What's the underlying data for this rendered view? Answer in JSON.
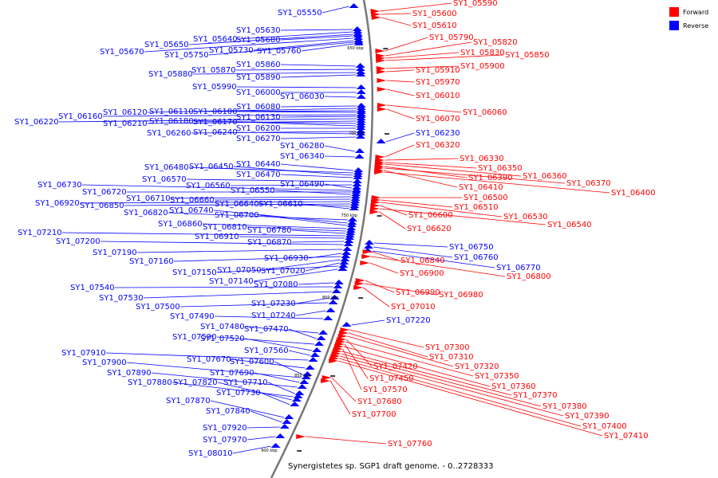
{
  "legend": {
    "forward_label": "Forward",
    "reverse_label": "Reverse",
    "forward_color": "#ff0000",
    "reverse_color": "#0000ff"
  },
  "caption": "Synergistetes sp. SGP1 draft genome. - 0..2728333",
  "backbone_ticks": [
    "650 kbp",
    "700 kbp",
    "750 kbp",
    "800 kbp",
    "850 kbp",
    "900 kbp"
  ],
  "reverse_genes": [
    "SY1_05550",
    "SY1_05630",
    "SY1_05640",
    "SY1_05650",
    "SY1_05680",
    "SY1_05670",
    "SY1_05730",
    "SY1_05750",
    "SY1_05760",
    "SY1_05860",
    "SY1_05870",
    "SY1_05880",
    "SY1_05890",
    "SY1_05990",
    "SY1_06000",
    "SY1_06030",
    "SY1_06080",
    "SY1_06120",
    "SY1_06110",
    "SY1_06100",
    "SY1_06160",
    "SY1_06130",
    "SY1_06220",
    "SY1_06210",
    "SY1_06180",
    "SY1_06170",
    "SY1_06200",
    "SY1_06260",
    "SY1_06240",
    "SY1_06270",
    "SY1_06280",
    "SY1_06340",
    "SY1_06440",
    "SY1_06480",
    "SY1_06450",
    "SY1_06470",
    "SY1_06570",
    "SY1_06560",
    "SY1_06490",
    "SY1_06730",
    "SY1_06720",
    "SY1_06550",
    "SY1_06710",
    "SY1_06660",
    "SY1_06920",
    "SY1_06850",
    "SY1_06640",
    "SY1_06610",
    "SY1_06820",
    "SY1_06740",
    "SY1_06700",
    "SY1_06860",
    "SY1_06810",
    "SY1_06780",
    "SY1_07210",
    "SY1_06910",
    "SY1_06870",
    "SY1_07200",
    "SY1_07190",
    "SY1_06930",
    "SY1_07160",
    "SY1_07050",
    "SY1_07020",
    "SY1_07150",
    "SY1_07140",
    "SY1_07080",
    "SY1_07540",
    "SY1_07530",
    "SY1_07230",
    "SY1_07500",
    "SY1_07240",
    "SY1_07490",
    "SY1_07480",
    "SY1_07470",
    "SY1_07590",
    "SY1_07520",
    "SY1_07560",
    "SY1_07910",
    "SY1_07670",
    "SY1_07600",
    "SY1_07900",
    "SY1_07690",
    "SY1_07890",
    "SY1_07710",
    "SY1_07880",
    "SY1_07820",
    "SY1_07730",
    "SY1_07870",
    "SY1_07840",
    "SY1_07920",
    "SY1_07970",
    "SY1_08010",
    "SY1_06230",
    "SY1_06750",
    "SY1_06760",
    "SY1_06770",
    "SY1_07220"
  ],
  "forward_genes": [
    "SY1_05590",
    "SY1_05600",
    "SY1_05610",
    "SY1_05790",
    "SY1_05820",
    "SY1_05830",
    "SY1_05850",
    "SY1_05900",
    "SY1_05910",
    "SY1_05970",
    "SY1_06010",
    "SY1_06060",
    "SY1_06070",
    "SY1_06320",
    "SY1_06330",
    "SY1_06350",
    "SY1_06360",
    "SY1_06390",
    "SY1_06370",
    "SY1_06410",
    "SY1_06400",
    "SY1_06500",
    "SY1_06510",
    "SY1_06530",
    "SY1_06600",
    "SY1_06540",
    "SY1_06620",
    "SY1_06840",
    "SY1_06800",
    "SY1_06900",
    "SY1_06990",
    "SY1_06980",
    "SY1_07010",
    "SY1_07300",
    "SY1_07310",
    "SY1_07320",
    "SY1_07420",
    "SY1_07350",
    "SY1_07450",
    "SY1_07360",
    "SY1_07570",
    "SY1_07370",
    "SY1_07680",
    "SY1_07380",
    "SY1_07700",
    "SY1_07390",
    "SY1_07400",
    "SY1_07410",
    "SY1_07760"
  ]
}
